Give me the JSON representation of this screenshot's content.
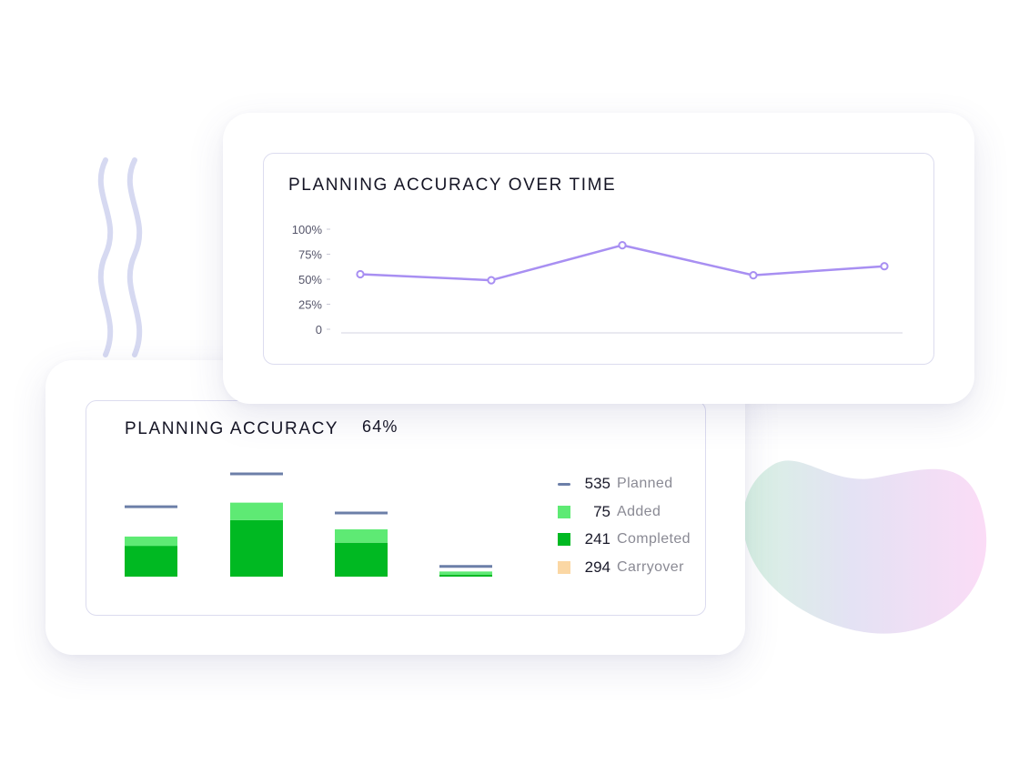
{
  "colors": {
    "line": "#a88ff2",
    "planned": "#6c7fa8",
    "added": "#5eea74",
    "completed": "#00b922",
    "carryover": "#fbd7a4",
    "wave": "#d6d9f1"
  },
  "line_card": {
    "title": "PLANNING ACCURACY OVER TIME"
  },
  "bar_card": {
    "title": "PLANNING ACCURACY",
    "accuracy": "64%",
    "legend": [
      {
        "key": "planned",
        "value": "535",
        "label": "Planned",
        "swatch": "dash"
      },
      {
        "key": "added",
        "value": "75",
        "label": "Added",
        "swatch": "square"
      },
      {
        "key": "completed",
        "value": "241",
        "label": "Completed",
        "swatch": "square"
      },
      {
        "key": "carryover",
        "value": "294",
        "label": "Carryover",
        "swatch": "square"
      }
    ]
  },
  "chart_data": [
    {
      "type": "line",
      "title": "PLANNING ACCURACY OVER TIME",
      "ylim": [
        0,
        100
      ],
      "yticks": [
        "100%",
        "75%",
        "50%",
        "25%",
        "0"
      ],
      "y_tick_values": [
        100,
        75,
        50,
        25,
        0
      ],
      "series": [
        {
          "values": [
            55,
            49,
            84,
            54,
            63
          ]
        }
      ]
    },
    {
      "type": "bar",
      "title": "PLANNING ACCURACY",
      "ylim": [
        0,
        100
      ],
      "series": [
        {
          "name": "Planned",
          "values": [
            68,
            100,
            62,
            10
          ]
        },
        {
          "name": "Completed",
          "values": [
            30,
            55,
            33,
            2
          ]
        },
        {
          "name": "Added",
          "values": [
            9,
            17,
            13,
            3
          ]
        }
      ]
    }
  ]
}
